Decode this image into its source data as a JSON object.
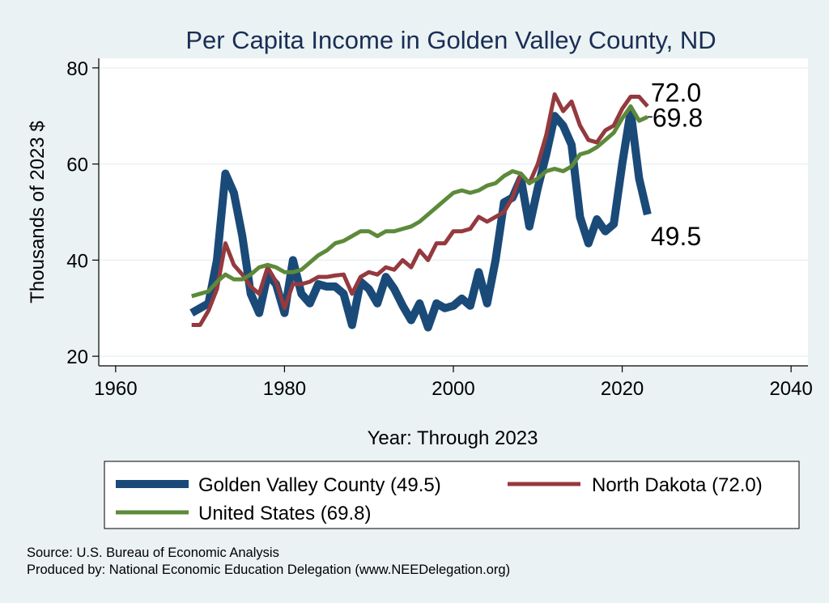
{
  "colors": {
    "background": "#eaf2f3",
    "plot_background": "#ffffff",
    "grid": "#e6efef",
    "title": "#1a2d55",
    "county": "#1a4a78",
    "state": "#943a3f",
    "us": "#5c8a3a"
  },
  "chart_data": {
    "type": "line",
    "title": "Per Capita Income in Golden Valley County, ND",
    "xlabel": "Year: Through 2023",
    "ylabel": "Thousands of 2023 $",
    "xlim": [
      1958,
      2042
    ],
    "ylim": [
      18,
      82
    ],
    "xticks": [
      1960,
      1980,
      2000,
      2020,
      2040
    ],
    "yticks": [
      20,
      40,
      60,
      80
    ],
    "x": [
      1969,
      1970,
      1971,
      1972,
      1973,
      1974,
      1975,
      1976,
      1977,
      1978,
      1979,
      1980,
      1981,
      1982,
      1983,
      1984,
      1985,
      1986,
      1987,
      1988,
      1989,
      1990,
      1991,
      1992,
      1993,
      1994,
      1995,
      1996,
      1997,
      1998,
      1999,
      2000,
      2001,
      2002,
      2003,
      2004,
      2005,
      2006,
      2007,
      2008,
      2009,
      2010,
      2011,
      2012,
      2013,
      2014,
      2015,
      2016,
      2017,
      2018,
      2019,
      2020,
      2021,
      2022,
      2023
    ],
    "series": [
      {
        "name": "Golden Valley County",
        "legend": "Golden Valley County (49.5)",
        "end_value": "49.5",
        "values": [
          29.0,
          30.0,
          31.0,
          40.0,
          58.0,
          54.0,
          45.0,
          33.0,
          29.0,
          37.0,
          35.0,
          29.0,
          40.0,
          33.0,
          31.0,
          35.0,
          34.5,
          34.5,
          33.0,
          26.5,
          35.5,
          34.0,
          31.0,
          36.5,
          34.0,
          30.5,
          27.5,
          31.0,
          26.0,
          31.0,
          30.0,
          30.5,
          32.0,
          30.5,
          37.5,
          31.0,
          40.0,
          52.0,
          53.0,
          57.0,
          47.0,
          55.0,
          62.0,
          70.0,
          68.0,
          64.0,
          49.0,
          43.5,
          48.5,
          46.0,
          47.5,
          60.0,
          71.0,
          57.0,
          49.5
        ]
      },
      {
        "name": "North Dakota",
        "legend": "North Dakota (72.0)",
        "end_value": "72.0",
        "values": [
          26.5,
          26.5,
          29.5,
          34.0,
          43.5,
          39.0,
          37.0,
          34.5,
          33.0,
          38.5,
          35.5,
          30.0,
          35.0,
          35.0,
          35.5,
          36.5,
          36.5,
          36.8,
          37.0,
          33.0,
          36.5,
          37.5,
          37.0,
          38.5,
          38.0,
          40.0,
          38.5,
          42.0,
          40.0,
          43.5,
          43.5,
          46.0,
          46.0,
          46.5,
          49.0,
          48.0,
          49.0,
          50.0,
          53.0,
          58.0,
          56.0,
          60.0,
          66.0,
          74.5,
          71.0,
          73.0,
          68.0,
          65.0,
          64.5,
          67.0,
          68.0,
          71.5,
          74.0,
          74.0,
          72.0
        ]
      },
      {
        "name": "United States",
        "legend": "United States (69.8)",
        "end_value": "69.8",
        "values": [
          32.5,
          33.0,
          33.5,
          35.5,
          37.0,
          36.0,
          36.0,
          37.0,
          38.5,
          39.0,
          38.5,
          37.5,
          37.5,
          38.0,
          39.5,
          41.0,
          42.0,
          43.5,
          44.0,
          45.0,
          46.0,
          46.0,
          45.0,
          46.0,
          46.0,
          46.5,
          47.0,
          48.0,
          49.5,
          51.0,
          52.5,
          54.0,
          54.5,
          54.0,
          54.5,
          55.5,
          56.0,
          57.5,
          58.5,
          58.0,
          56.0,
          57.0,
          58.5,
          59.0,
          58.5,
          59.5,
          62.0,
          62.5,
          63.5,
          65.0,
          66.5,
          69.5,
          72.0,
          69.0,
          69.8
        ]
      }
    ],
    "legend_position": "bottom"
  },
  "notes": {
    "source": "Source: U.S. Bureau of Economic Analysis",
    "produced_by": "Produced by: National Economic Education Delegation (www.NEEDelegation.org)"
  }
}
